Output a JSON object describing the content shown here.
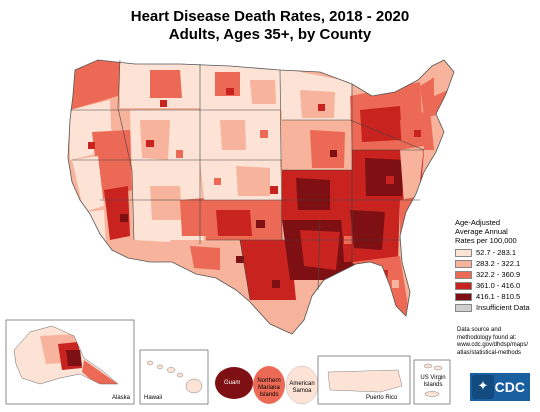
{
  "title_line1": "Heart Disease Death Rates, 2018 - 2020",
  "title_line2": "Adults, Ages 35+, by County",
  "legend": {
    "heading1": "Age-Adjusted",
    "heading2": "Average Annual",
    "heading3": "Rates per 100,000",
    "items": [
      {
        "label": "52.7 - 283.1",
        "color": "#fde3d6"
      },
      {
        "label": "283.2 - 322.1",
        "color": "#f7b39b"
      },
      {
        "label": "322.2 - 360.9",
        "color": "#ec6a55"
      },
      {
        "label": "361.0 - 416.0",
        "color": "#c8231f"
      },
      {
        "label": "416.1 - 810.5",
        "color": "#7e0f12"
      },
      {
        "label": "Insufficient Data",
        "color": "#cfcfcf"
      }
    ]
  },
  "source": {
    "line1": "Data source and",
    "line2": "methodology found at:",
    "line3": "www.cdc.gov/dhdsp/maps/",
    "line4": "atlas/statistical-methods"
  },
  "insets": {
    "alaska": "Alaska",
    "hawaii": "Hawaii",
    "guam": "Guam",
    "nmi_1": "Northern",
    "nmi_2": "Mariana",
    "nmi_3": "Islands",
    "samoa_1": "American",
    "samoa_2": "Samoa",
    "puerto_rico": "Puerto Rico",
    "usvi_1": "US Virgin",
    "usvi_2": "Islands"
  },
  "logo_text": "CDC",
  "colors": {
    "c1": "#fde3d6",
    "c2": "#f7b39b",
    "c3": "#ec6a55",
    "c4": "#c8231f",
    "c5": "#7e0f12",
    "c_na": "#cfcfcf"
  }
}
